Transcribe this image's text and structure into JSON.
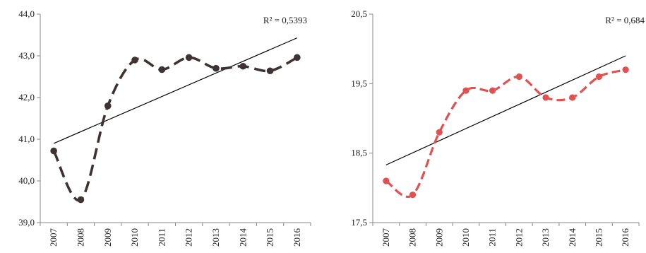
{
  "chart_data": [
    {
      "type": "line",
      "x": [
        "2007",
        "2008",
        "2009",
        "2010",
        "2011",
        "2012",
        "2013",
        "2014",
        "2015",
        "2016"
      ],
      "series": [
        {
          "values": [
            40.72,
            39.55,
            41.8,
            42.9,
            42.67,
            42.96,
            42.7,
            42.75,
            42.64,
            42.96
          ],
          "color": "#3d3333",
          "style": "dashed-smooth-with-markers"
        }
      ],
      "trendline": {
        "type": "linear",
        "start": 40.9,
        "end": 43.43,
        "color": "#000000"
      },
      "r2_label": "R² = 0,5393",
      "yticks": [
        "44,0",
        "43,0",
        "42,0",
        "41,0",
        "40,0",
        "39,0"
      ],
      "ylim": [
        39.0,
        44.0
      ],
      "grid": false
    },
    {
      "type": "line",
      "x": [
        "2007",
        "2008",
        "2009",
        "2010",
        "2011",
        "2012",
        "2013",
        "2014",
        "2015",
        "2016"
      ],
      "series": [
        {
          "values": [
            18.1,
            17.9,
            18.8,
            19.4,
            19.4,
            19.6,
            19.3,
            19.3,
            19.6,
            19.7
          ],
          "color": "#e05252",
          "style": "dashed-smooth-with-markers"
        }
      ],
      "trendline": {
        "type": "linear",
        "start": 18.33,
        "end": 19.9,
        "color": "#000000"
      },
      "r2_label": "R² = 0,684",
      "yticks": [
        "20,5",
        "19,5",
        "18,5",
        "17,5"
      ],
      "ylim": [
        17.5,
        20.5
      ],
      "grid": false
    }
  ]
}
